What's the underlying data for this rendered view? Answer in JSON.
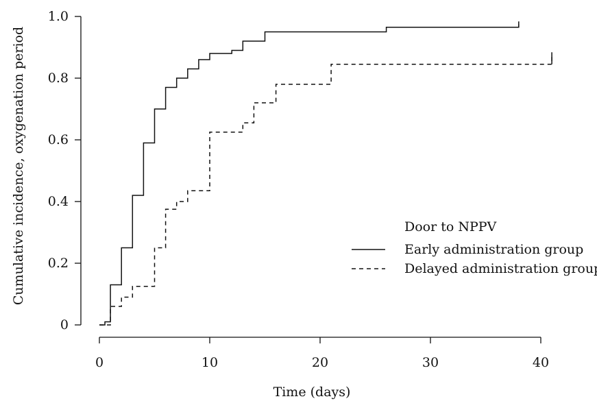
{
  "chart_data": {
    "type": "line",
    "step": true,
    "xlabel": "Time (days)",
    "ylabel": "Cumulative incidence, oxygenation period",
    "xlim": [
      0,
      42
    ],
    "ylim": [
      0,
      1.0
    ],
    "x_ticks": [
      0,
      10,
      20,
      30,
      40
    ],
    "y_ticks": [
      0,
      0.2,
      0.4,
      0.6,
      0.8,
      1.0
    ],
    "x_tick_labels": [
      "0",
      "10",
      "20",
      "30",
      "40"
    ],
    "y_tick_labels": [
      "0",
      "0.2",
      "0.4",
      "0.6",
      "0.8",
      "1.0"
    ],
    "grid": false,
    "legend": {
      "title": "Door to NPPV",
      "placement": "right"
    },
    "series": [
      {
        "name": "Early administration group",
        "line_style": "solid",
        "color": "#111111",
        "x": [
          0,
          0.5,
          1,
          2,
          3,
          4,
          5,
          6,
          7,
          8,
          9,
          10,
          12,
          13,
          15,
          26,
          38
        ],
        "y": [
          0,
          0.01,
          0.13,
          0.25,
          0.42,
          0.59,
          0.7,
          0.77,
          0.8,
          0.83,
          0.86,
          0.88,
          0.89,
          0.92,
          0.95,
          0.965,
          0.975
        ]
      },
      {
        "name": "Delayed administration group",
        "line_style": "dashed",
        "color": "#111111",
        "x": [
          0,
          1,
          2,
          3,
          5,
          6,
          7,
          8,
          10,
          13,
          14,
          16,
          21,
          41
        ],
        "y": [
          0,
          0.06,
          0.09,
          0.125,
          0.25,
          0.375,
          0.4,
          0.435,
          0.625,
          0.655,
          0.72,
          0.78,
          0.845,
          0.875
        ]
      }
    ],
    "end_values": [
      0.965,
      0.845
    ]
  }
}
